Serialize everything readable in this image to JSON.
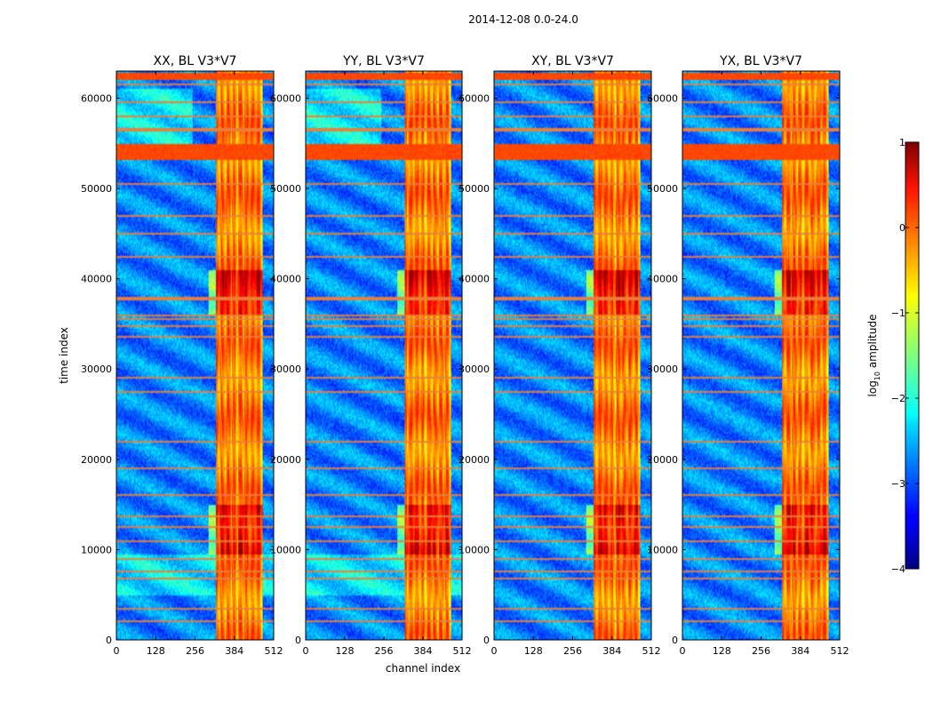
{
  "suptitle": "2014-12-08 0.0-24.0",
  "chart_data": [
    {
      "type": "heatmap",
      "title": "XX, BL V3*V7",
      "xlabel": "",
      "ylabel": "time index",
      "xlim": [
        0,
        512
      ],
      "ylim": [
        0,
        63000
      ],
      "xticks": [
        0,
        128,
        256,
        384,
        512
      ],
      "yticks": [
        0,
        10000,
        20000,
        30000,
        40000,
        50000,
        60000
      ]
    },
    {
      "type": "heatmap",
      "title": "YY, BL V3*V7",
      "xlabel": "channel index",
      "ylabel": "",
      "xlim": [
        0,
        512
      ],
      "ylim": [
        0,
        63000
      ],
      "xticks": [
        0,
        128,
        256,
        384,
        512
      ],
      "yticks": [
        0,
        10000,
        20000,
        30000,
        40000,
        50000,
        60000
      ]
    },
    {
      "type": "heatmap",
      "title": "XY, BL V3*V7",
      "xlabel": "",
      "ylabel": "",
      "xlim": [
        0,
        512
      ],
      "ylim": [
        0,
        63000
      ],
      "xticks": [
        0,
        128,
        256,
        384,
        512
      ],
      "yticks": [
        0,
        10000,
        20000,
        30000,
        40000,
        50000,
        60000
      ]
    },
    {
      "type": "heatmap",
      "title": "YX, BL V3*V7",
      "xlabel": "",
      "ylabel": "",
      "xlim": [
        0,
        512
      ],
      "ylim": [
        0,
        63000
      ],
      "xticks": [
        0,
        128,
        256,
        384,
        512
      ],
      "yticks": [
        0,
        10000,
        20000,
        30000,
        40000,
        50000,
        60000
      ]
    }
  ],
  "colorbar": {
    "label": "log10 amplitude",
    "label_main": "log",
    "label_sub": "10",
    "label_rest": " amplitude",
    "range": [
      -4,
      1
    ],
    "ticks": [
      1,
      0,
      -1,
      -2,
      -3,
      -4
    ],
    "tick_labels": [
      "1",
      "0",
      "−1",
      "−2",
      "−3",
      "−4"
    ],
    "colormap": "jet"
  },
  "features": {
    "bright_band_channels": [
      325,
      475
    ],
    "strong_band_channels": [
      325,
      390
    ],
    "saturated_time_ranges": [
      [
        53200,
        55000
      ],
      [
        62000,
        62800
      ]
    ],
    "high_activity_time_ranges": [
      [
        9500,
        15000
      ],
      [
        36000,
        41000
      ]
    ],
    "flagged_row_times": [
      2000,
      3500,
      6800,
      7600,
      9000,
      11000,
      12500,
      13600,
      16000,
      19000,
      22000,
      27500,
      29000,
      33500,
      34800,
      35500,
      36000,
      37800,
      42500,
      45000,
      47000,
      50500,
      56500,
      58000,
      59500,
      61500
    ]
  }
}
